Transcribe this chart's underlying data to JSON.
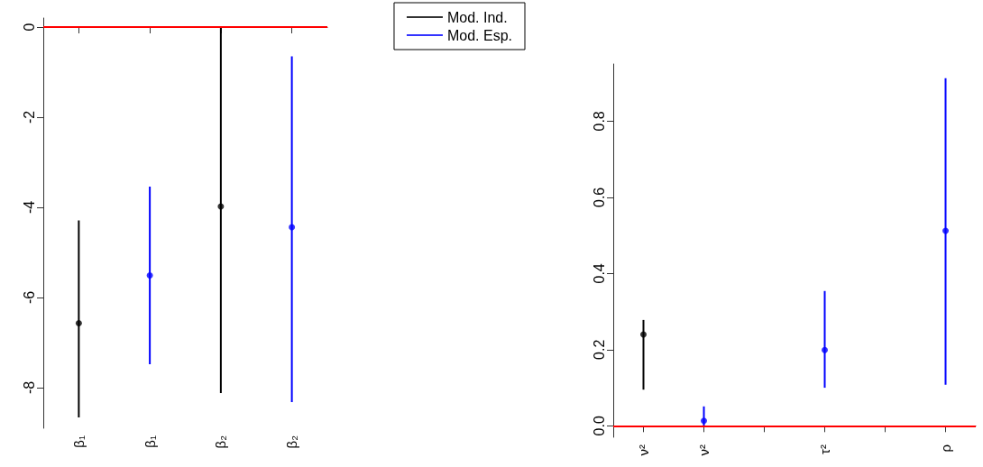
{
  "chart_data": [
    {
      "type": "scatter",
      "categories": [
        "β₁",
        "β₁",
        "β₂",
        "β₂"
      ],
      "ylim": [
        -8.9,
        0.2
      ],
      "yticks": [
        0,
        -2,
        -4,
        -6,
        -8
      ],
      "grid": false,
      "legend": "top right",
      "marker": "circle",
      "series": [
        {
          "name": "Mod. Ind.",
          "color": "#000000",
          "values": [
            -6.57,
            null,
            -3.98,
            null
          ],
          "errors": [
            [
              -8.66,
              -4.29
            ],
            null,
            [
              -8.12,
              0
            ],
            null
          ]
        },
        {
          "name": "Mod. Esp.",
          "color": "#0000ff",
          "values": [
            null,
            -5.51,
            null,
            -4.44
          ],
          "errors": [
            null,
            [
              -7.48,
              -3.54
            ],
            null,
            [
              -8.32,
              -0.65
            ]
          ]
        }
      ],
      "ref_lines": [
        {
          "axis": "y",
          "value": 0,
          "color": "#ff0000"
        }
      ]
    },
    {
      "type": "scatter",
      "categories": [
        "ν²",
        "ν²",
        null,
        "τ²",
        null,
        "ρ"
      ],
      "ylim": [
        -0.03,
        0.95
      ],
      "yticks": [
        {
          "value": 0,
          "label": "0.0"
        },
        0.2,
        0.4,
        0.6,
        0.8
      ],
      "grid": false,
      "legend": false,
      "marker": "circle",
      "series": [
        {
          "color": "#000000",
          "values": [
            0.24,
            null,
            null,
            null,
            null,
            null
          ],
          "errors": [
            [
              0.095,
              0.278
            ],
            null,
            null,
            null,
            null,
            null
          ]
        },
        {
          "color": "#0000ff",
          "values": [
            null,
            0.013,
            null,
            0.199,
            null,
            0.512
          ],
          "errors": [
            null,
            [
              0,
              0.051
            ],
            null,
            [
              0.1,
              0.354
            ],
            null,
            [
              0.108,
              0.913
            ]
          ]
        }
      ],
      "ref_lines": [
        {
          "axis": "y",
          "value": 0,
          "color": "#ff0000"
        }
      ]
    }
  ]
}
